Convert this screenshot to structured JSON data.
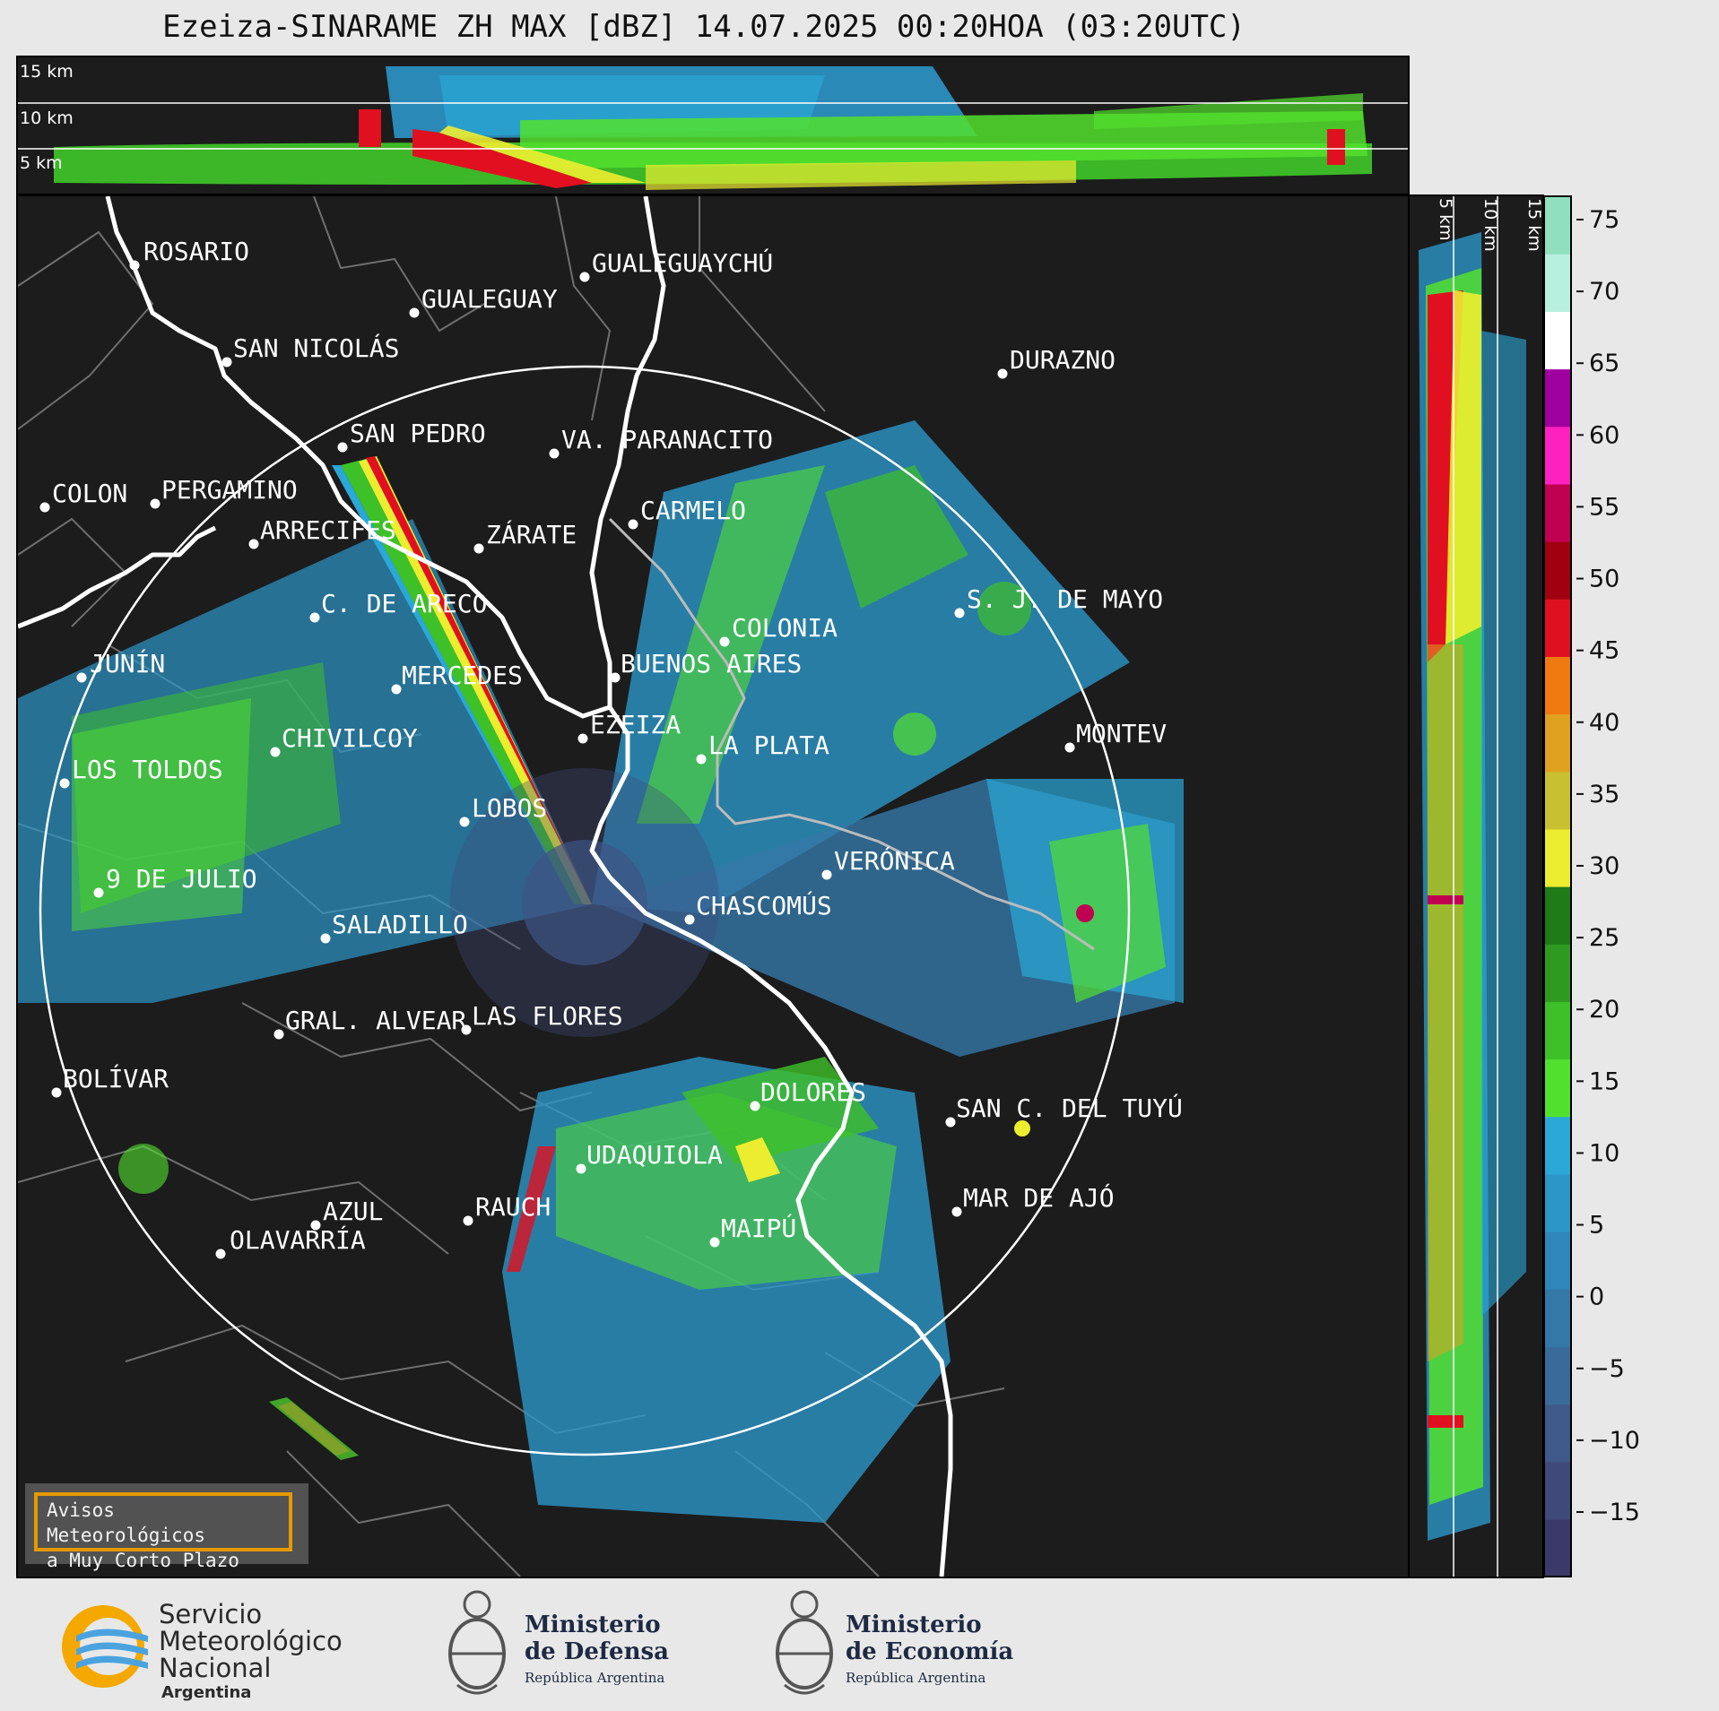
{
  "title": "Ezeiza-SINARAME ZH MAX [dBZ] 14.07.2025 00:20HOA (03:20UTC)",
  "altitude_labels": [
    "15 km",
    "10 km",
    "5 km"
  ],
  "side_altitude_labels": [
    "5 km",
    "10 km",
    "15 km"
  ],
  "colorbar": {
    "ticks": [
      "75",
      "70",
      "65",
      "60",
      "55",
      "50",
      "45",
      "40",
      "35",
      "30",
      "25",
      "20",
      "15",
      "10",
      "5",
      "0",
      "−5",
      "−10",
      "−15"
    ],
    "colors": [
      "#3a3a6a",
      "#3f4a7a",
      "#3f5a8a",
      "#3a6a9a",
      "#3478a8",
      "#2f86b8",
      "#2c96c8",
      "#2aa8d8",
      "#52e02e",
      "#3ec028",
      "#2e9a20",
      "#1f7a18",
      "#eded30",
      "#c8c030",
      "#e0a020",
      "#f07a10",
      "#e01020",
      "#a00010",
      "#c00050",
      "#ff20c0",
      "#a000a0",
      "#ffffff",
      "#b8f0e0",
      "#90e0c0"
    ]
  },
  "cities": [
    {
      "name": "ROSARIO"
    },
    {
      "name": "GUALEGUAYCHÚ"
    },
    {
      "name": "GUALEGUAY"
    },
    {
      "name": "SAN NICOLÁS"
    },
    {
      "name": "DURAZNO"
    },
    {
      "name": "SAN PEDRO"
    },
    {
      "name": "VA. PARANACITO"
    },
    {
      "name": "COLON"
    },
    {
      "name": "PERGAMINO"
    },
    {
      "name": "CARMELO"
    },
    {
      "name": "ARRECIFES"
    },
    {
      "name": "ZÁRATE"
    },
    {
      "name": "S. J. DE MAYO"
    },
    {
      "name": "C. DE ARECO"
    },
    {
      "name": "COLONIA"
    },
    {
      "name": "JUNÍN"
    },
    {
      "name": "BUENOS AIRES"
    },
    {
      "name": "MERCEDES"
    },
    {
      "name": "EZEIZA"
    },
    {
      "name": "MONTEV"
    },
    {
      "name": "CHIVILCOY"
    },
    {
      "name": "LA PLATA"
    },
    {
      "name": "LOS TOLDOS"
    },
    {
      "name": "LOBOS"
    },
    {
      "name": "VERÓNICA"
    },
    {
      "name": "9 DE JULIO"
    },
    {
      "name": "CHASCOMÚS"
    },
    {
      "name": "SALADILLO"
    },
    {
      "name": "GRAL. ALVEAR"
    },
    {
      "name": "LAS FLORES"
    },
    {
      "name": "BOLÍVAR"
    },
    {
      "name": "DOLORES"
    },
    {
      "name": "SAN C. DEL TUYÚ"
    },
    {
      "name": "UDAQUIOLA"
    },
    {
      "name": "MAR DE AJÓ"
    },
    {
      "name": "AZUL"
    },
    {
      "name": "RAUCH"
    },
    {
      "name": "OLAVARRÍA"
    },
    {
      "name": "MAIPÚ"
    }
  ],
  "avisos": {
    "line1": "Avisos Meteorológicos",
    "line2": "a Muy Corto Plazo"
  },
  "logos": {
    "smn": [
      "Servicio",
      "Meteorológico",
      "Nacional",
      "Argentina"
    ],
    "defensa": [
      "Ministerio",
      "de Defensa",
      "República Argentina"
    ],
    "economia": [
      "Ministerio",
      "de Economía",
      "República Argentina"
    ]
  }
}
